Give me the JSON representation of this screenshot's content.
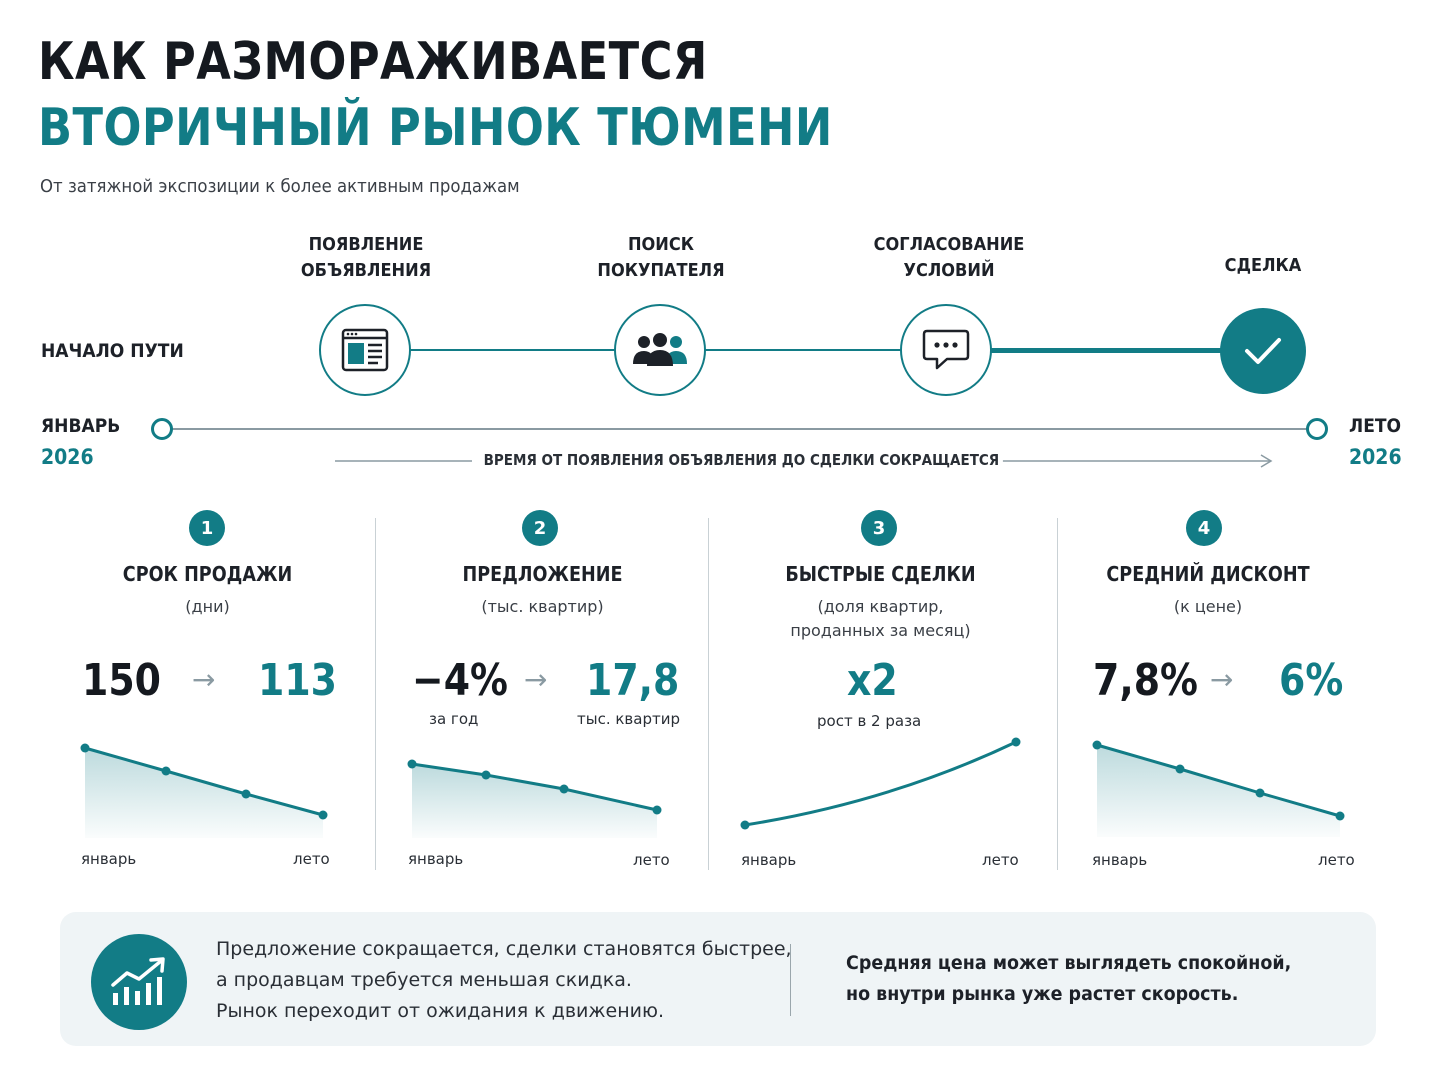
{
  "header": {
    "title_line1": "КАК РАЗМОРАЖИВАЕТСЯ",
    "title_line2": "ВТОРИЧНЫЙ РЫНОК ТЮМЕНИ",
    "subtitle": "От затяжной экспозиции к более активным продажам"
  },
  "journey": {
    "start_label": "НАЧАЛО ПУТИ",
    "steps": [
      {
        "line1": "ПОЯВЛЕНИЕ",
        "line2": "ОБЪЯВЛЕНИЯ",
        "icon": "listing-icon"
      },
      {
        "line1": "ПОИСК",
        "line2": "ПОКУПАТЕЛЯ",
        "icon": "people-icon"
      },
      {
        "line1": "СОГЛАСОВАНИЕ",
        "line2": "УСЛОВИЙ",
        "icon": "chat-icon"
      },
      {
        "line1": "СДЕЛКА",
        "line2": "",
        "icon": "check-icon"
      }
    ]
  },
  "timeline": {
    "start_month": "ЯНВАРЬ",
    "start_year": "2026",
    "end_month": "ЛЕТО",
    "end_year": "2026",
    "caption": "ВРЕМЯ ОТ ПОЯВЛЕНИЯ ОБЪЯВЛЕНИЯ ДО СДЕЛКИ СОКРАЩАЕТСЯ"
  },
  "metrics": [
    {
      "num": "1",
      "title": "СРОК ПРОДАЖИ",
      "sub": "(дни)",
      "from": "150",
      "to": "113",
      "from_note": "",
      "to_note": "",
      "axis_start": "январь",
      "axis_end": "лето"
    },
    {
      "num": "2",
      "title": "ПРЕДЛОЖЕНИЕ",
      "sub": "(тыс. квартир)",
      "from": "−4%",
      "to": "17,8",
      "from_note": "за год",
      "to_note": "тыс. квартир",
      "axis_start": "январь",
      "axis_end": "лето"
    },
    {
      "num": "3",
      "title": "БЫСТРЫЕ СДЕЛКИ",
      "sub": "(доля квартир, проданных за месяц)",
      "value": "x2",
      "value_note": "рост в 2 раза",
      "axis_start": "январь",
      "axis_end": "лето"
    },
    {
      "num": "4",
      "title": "СРЕДНИЙ ДИСКОНТ",
      "sub": "(к цене)",
      "from": "7,8%",
      "to": "6%",
      "from_note": "",
      "to_note": "",
      "axis_start": "январь",
      "axis_end": "лето"
    }
  ],
  "summary": {
    "icon": "growth-chart-icon",
    "line1": "Предложение сокращается, сделки становятся быстрее,",
    "line2": "а продавцам требуется меньшая скидка.",
    "line3": "Рынок переходит от ожидания к движению.",
    "bold_line1": "Средняя цена может выглядеть спокойной,",
    "bold_line2": "но внутри рынка уже растет скорость."
  },
  "colors": {
    "accent": "#127c86",
    "text": "#161a20",
    "muted": "#8a9aa2",
    "summary_bg": "#eff4f6"
  }
}
